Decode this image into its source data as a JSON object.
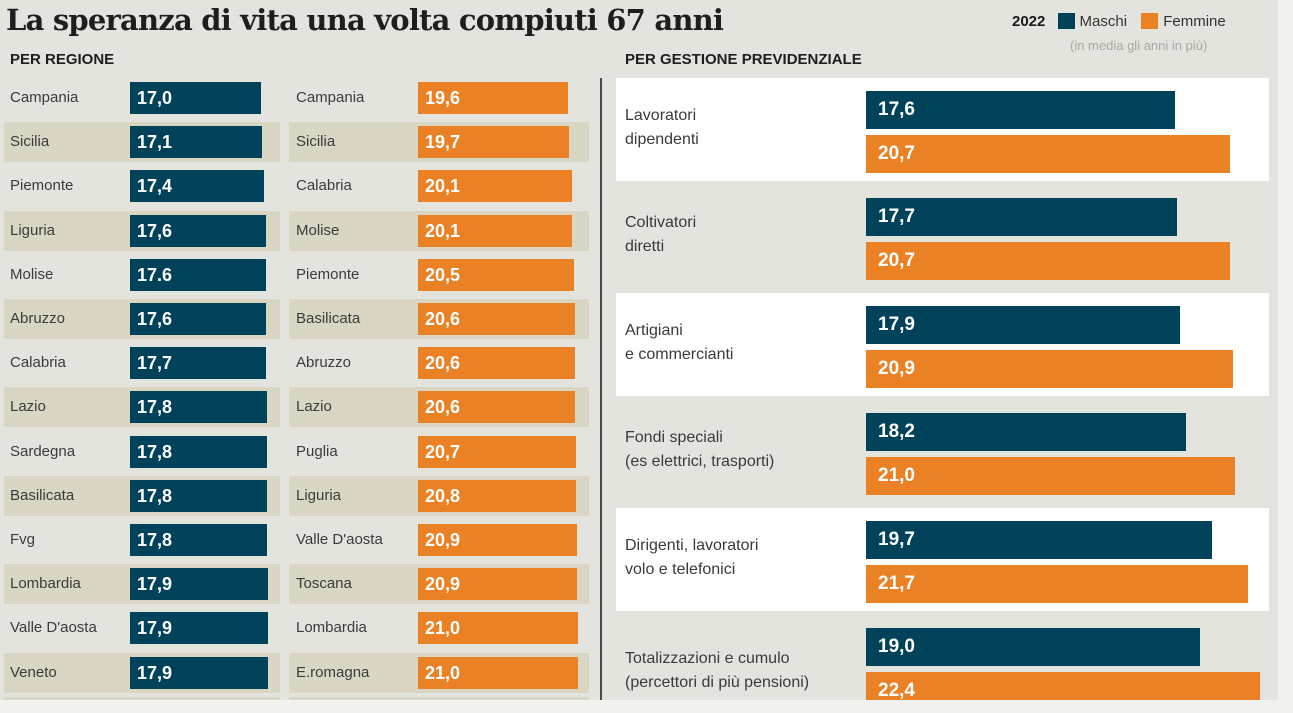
{
  "header": {
    "title": "La speranza di vita una volta compiuti 67 anni",
    "legend": {
      "year": "2022",
      "male_label": "Maschi",
      "female_label": "Femmine",
      "note": "(in media gli anni in più)"
    }
  },
  "colors": {
    "male": "#00425a",
    "female": "#ea8124",
    "band": "#dad6c4",
    "background": "#e4e4df"
  },
  "chart_data": [
    {
      "type": "bar",
      "title": "PER REGIONE",
      "subtitle": "Maschi — 2022",
      "series_name": "Maschi",
      "categories": [
        "Campania",
        "Sicilia",
        "Piemonte",
        "Liguria",
        "Molise",
        "Abruzzo",
        "Calabria",
        "Lazio",
        "Sardegna",
        "Basilicata",
        "Fvg",
        "Lombardia",
        "Valle D'aosta",
        "Veneto"
      ],
      "values": [
        17.0,
        17.1,
        17.4,
        17.6,
        17.6,
        17.6,
        17.7,
        17.8,
        17.8,
        17.8,
        17.8,
        17.9,
        17.9,
        17.9
      ],
      "labels": [
        "17,0",
        "17,1",
        "17,4",
        "17,6",
        "17.6",
        "17,6",
        "17,7",
        "17,8",
        "17,8",
        "17,8",
        "17,8",
        "17,9",
        "17,9",
        "17,9"
      ],
      "orientation": "horizontal"
    },
    {
      "type": "bar",
      "title": "PER REGIONE",
      "subtitle": "Femmine — 2022",
      "series_name": "Femmine",
      "categories": [
        "Campania",
        "Sicilia",
        "Calabria",
        "Molise",
        "Piemonte",
        "Basilicata",
        "Abruzzo",
        "Lazio",
        "Puglia",
        "Liguria",
        "Valle D'aosta",
        "Toscana",
        "Lombardia",
        "E.romagna"
      ],
      "values": [
        19.6,
        19.7,
        20.1,
        20.1,
        20.5,
        20.6,
        20.6,
        20.6,
        20.7,
        20.8,
        20.9,
        20.9,
        21.0,
        21.0
      ],
      "labels": [
        "19,6",
        "19,7",
        "20,1",
        "20,1",
        "20,5",
        "20,6",
        "20,6",
        "20,6",
        "20,7",
        "20,8",
        "20,9",
        "20,9",
        "21,0",
        "21,0"
      ],
      "orientation": "horizontal"
    },
    {
      "type": "bar",
      "title": "PER GESTIONE PREVIDENZIALE",
      "orientation": "horizontal",
      "categories": [
        [
          "Lavoratori",
          "dipendenti"
        ],
        [
          "Coltivatori",
          "diretti"
        ],
        [
          "Artigiani",
          "e commercianti"
        ],
        [
          "Fondi speciali",
          "(es elettrici, trasporti)"
        ],
        [
          "Dirigenti, lavoratori",
          "volo e telefonici"
        ],
        [
          "Totalizzazioni e cumulo",
          "(percettori di più pensioni)"
        ]
      ],
      "series": [
        {
          "name": "Maschi",
          "values": [
            17.6,
            17.7,
            17.9,
            18.2,
            19.7,
            19.0
          ],
          "labels": [
            "17,6",
            "17,7",
            "17,9",
            "18,2",
            "19,7",
            "19,0"
          ]
        },
        {
          "name": "Femmine",
          "values": [
            20.7,
            20.7,
            20.9,
            21.0,
            21.7,
            22.4
          ],
          "labels": [
            "20,7",
            "20,7",
            "20,9",
            "21,0",
            "21,7",
            "22,4"
          ]
        }
      ]
    }
  ]
}
